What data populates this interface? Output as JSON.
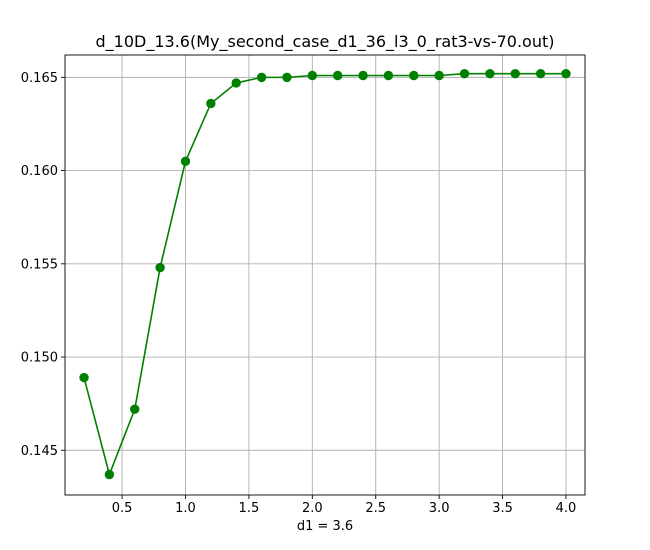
{
  "chart_data": {
    "type": "line",
    "title": "d_10D_13.6(My_second_case_d1_36_l3_0_rat3-vs-70.out)",
    "xlabel": "d1 = 3.6",
    "ylabel": "",
    "xlim": [
      0.05,
      4.15
    ],
    "ylim": [
      0.1426,
      0.1662
    ],
    "x_ticks": [
      0.5,
      1.0,
      1.5,
      2.0,
      2.5,
      3.0,
      3.5,
      4.0
    ],
    "x_tick_labels": [
      "0.5",
      "1.0",
      "1.5",
      "2.0",
      "2.5",
      "3.0",
      "3.5",
      "4.0"
    ],
    "y_ticks": [
      0.145,
      0.15,
      0.155,
      0.16,
      0.165
    ],
    "y_tick_labels": [
      "0.145",
      "0.150",
      "0.155",
      "0.160",
      "0.165"
    ],
    "grid": true,
    "series": [
      {
        "color": "#008000",
        "marker": "circle",
        "x": [
          0.2,
          0.4,
          0.6,
          0.8,
          1.0,
          1.2,
          1.4,
          1.6,
          1.8,
          2.0,
          2.2,
          2.4,
          2.6,
          2.8,
          3.0,
          3.2,
          3.4,
          3.6,
          3.8,
          4.0
        ],
        "y": [
          0.1489,
          0.1437,
          0.1472,
          0.1548,
          0.1605,
          0.1636,
          0.1647,
          0.165,
          0.165,
          0.1651,
          0.1651,
          0.1651,
          0.1651,
          0.1651,
          0.1651,
          0.1652,
          0.1652,
          0.1652,
          0.1652,
          0.1652
        ]
      }
    ]
  }
}
